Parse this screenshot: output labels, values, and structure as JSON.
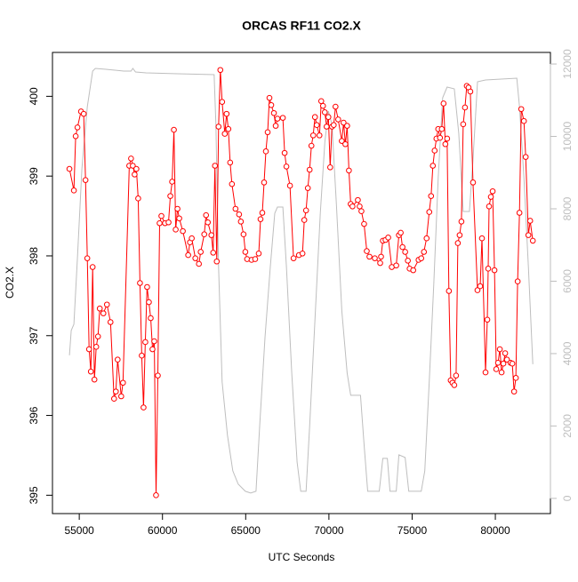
{
  "chart_data": {
    "type": "line",
    "title": "ORCAS RF11 CO2.X",
    "x_label": "UTC Seconds",
    "y_label": "CO2.X",
    "xlim": [
      53390,
      83310
    ],
    "xticks": [
      55000,
      60000,
      65000,
      70000,
      75000,
      80000
    ],
    "ylim": [
      394.77,
      400.55
    ],
    "yticks": [
      395,
      396,
      397,
      398,
      399,
      400
    ],
    "y2lim": [
      -420,
      12320
    ],
    "y2ticks": [
      0,
      2000,
      4000,
      6000,
      8000,
      10000,
      12000
    ],
    "series": [
      {
        "color": "#bebebe",
        "axis": "y2",
        "markers": false,
        "x": [
          54409,
          54517,
          54678,
          54892,
          55161,
          55482,
          55804,
          55965,
          56609,
          57682,
          58111,
          58218,
          58379,
          59023,
          60901,
          63101,
          63208,
          63369,
          63584,
          63905,
          64227,
          64549,
          64978,
          65300,
          65622,
          65837,
          66159,
          66481,
          66749,
          66910,
          67232,
          67446,
          67768,
          68090,
          68305,
          68627,
          68842,
          69163,
          69485,
          69754,
          69968,
          70183,
          70451,
          70773,
          71095,
          71309,
          71899,
          72114,
          72329,
          73026,
          73241,
          73509,
          73670,
          74046,
          74207,
          74582,
          74797,
          75548,
          75763,
          76030,
          76299,
          76567,
          76835,
          77104,
          77533,
          77801,
          78069,
          78445,
          78659,
          78927,
          79410,
          81288,
          81449,
          81717,
          81985,
          82253
        ],
        "values": [
          3951,
          4638,
          4810,
          6650,
          9104,
          10822,
          11804,
          11877,
          11853,
          11804,
          11804,
          11877,
          11779,
          11755,
          11730,
          11706,
          10331,
          6405,
          3215,
          1742,
          761,
          393,
          196,
          147,
          196,
          1988,
          4442,
          6405,
          7877,
          8049,
          8049,
          6405,
          3460,
          1006,
          196,
          196,
          1988,
          4933,
          7877,
          9841,
          10699,
          10331,
          8123,
          5178,
          3460,
          2847,
          2847,
          1497,
          196,
          196,
          1104,
          1104,
          196,
          196,
          1202,
          1129,
          196,
          196,
          761,
          3215,
          5914,
          8859,
          11068,
          11362,
          11313,
          10086,
          7927,
          7927,
          9350,
          11509,
          11558,
          11607,
          10822,
          8859,
          6405,
          3706
        ]
      },
      {
        "color": "#ff0000",
        "markers": true,
        "x": [
          54409,
          54678,
          54785,
          54892,
          55107,
          55268,
          55375,
          55482,
          55590,
          55697,
          55804,
          55911,
          56019,
          56126,
          56233,
          56448,
          56663,
          56877,
          57092,
          57199,
          57306,
          57521,
          57628,
          58004,
          58111,
          58218,
          58326,
          58433,
          58540,
          58648,
          58755,
          58862,
          58970,
          59077,
          59184,
          59292,
          59399,
          59506,
          59613,
          59721,
          59828,
          59935,
          60150,
          60364,
          60472,
          60579,
          60686,
          60794,
          60901,
          61008,
          61223,
          61545,
          61652,
          61759,
          61974,
          62189,
          62296,
          62511,
          62618,
          62725,
          62940,
          63047,
          63154,
          63262,
          63369,
          63476,
          63584,
          63744,
          63852,
          63959,
          64066,
          64174,
          64388,
          64603,
          64710,
          64871,
          64978,
          65086,
          65354,
          65569,
          65783,
          65891,
          65998,
          66105,
          66213,
          66320,
          66427,
          66534,
          66695,
          66803,
          66910,
          67232,
          67339,
          67446,
          67661,
          67876,
          68198,
          68412,
          68520,
          68627,
          68734,
          68842,
          68949,
          69056,
          69163,
          69271,
          69432,
          69539,
          69646,
          69754,
          69861,
          69968,
          70076,
          70183,
          70290,
          70397,
          70558,
          70773,
          70880,
          70988,
          71095,
          71202,
          71309,
          71417,
          71739,
          71846,
          71953,
          72114,
          72275,
          72436,
          72758,
          73080,
          73133,
          73241,
          73402,
          73563,
          73777,
          74046,
          74207,
          74314,
          74421,
          74582,
          74743,
          74850,
          75065,
          75387,
          75548,
          75709,
          75870,
          76030,
          76138,
          76245,
          76352,
          76460,
          76567,
          76674,
          76782,
          76889,
          76996,
          77104,
          77211,
          77318,
          77425,
          77533,
          77640,
          77747,
          77855,
          77962,
          78069,
          78176,
          78284,
          78391,
          78498,
          78659,
          78927,
          79088,
          79196,
          79410,
          79518,
          79571,
          79625,
          79732,
          79839,
          79947,
          80054,
          80161,
          80269,
          80376,
          80483,
          80590,
          80698,
          80912,
          81020,
          81127,
          81234,
          81341,
          81449,
          81556,
          81717,
          81824,
          81985,
          82092,
          82253
        ],
        "values": [
          399.09,
          398.82,
          399.5,
          399.61,
          399.81,
          399.78,
          398.95,
          397.97,
          396.83,
          396.55,
          397.86,
          396.45,
          396.86,
          396.99,
          397.34,
          397.28,
          397.39,
          397.17,
          396.21,
          396.3,
          396.7,
          396.24,
          396.41,
          399.13,
          399.22,
          399.13,
          399.02,
          399.09,
          398.72,
          397.66,
          396.75,
          396.1,
          396.92,
          397.61,
          397.42,
          397.22,
          396.83,
          396.93,
          395.0,
          396.5,
          398.41,
          398.5,
          398.41,
          398.42,
          398.75,
          398.93,
          399.58,
          398.33,
          398.59,
          398.47,
          398.31,
          398.01,
          398.17,
          398.22,
          397.97,
          397.9,
          398.05,
          398.27,
          398.51,
          398.42,
          398.26,
          398.04,
          399.13,
          397.93,
          399.62,
          400.33,
          399.93,
          399.53,
          399.78,
          399.59,
          399.17,
          398.9,
          398.59,
          398.52,
          398.43,
          398.27,
          398.05,
          397.96,
          397.95,
          397.96,
          398.03,
          398.46,
          398.54,
          398.92,
          399.31,
          399.55,
          399.98,
          399.89,
          399.79,
          399.63,
          399.72,
          399.73,
          399.29,
          399.12,
          398.88,
          397.97,
          398.01,
          398.03,
          398.45,
          398.57,
          398.85,
          399.08,
          399.38,
          399.51,
          399.74,
          399.64,
          399.51,
          399.94,
          399.88,
          399.8,
          399.62,
          399.74,
          399.11,
          399.62,
          399.64,
          399.87,
          399.71,
          399.44,
          399.67,
          399.4,
          399.63,
          399.07,
          398.65,
          398.62,
          398.7,
          398.62,
          398.56,
          398.4,
          398.06,
          397.99,
          397.97,
          397.91,
          397.99,
          398.19,
          398.2,
          398.23,
          397.86,
          397.88,
          398.26,
          398.29,
          398.11,
          398.05,
          397.94,
          397.84,
          397.82,
          397.95,
          397.97,
          398.05,
          398.22,
          398.55,
          398.75,
          399.13,
          399.32,
          399.47,
          399.59,
          399.48,
          399.59,
          399.91,
          399.4,
          399.47,
          397.56,
          396.44,
          396.41,
          396.38,
          396.5,
          398.16,
          398.26,
          398.43,
          399.65,
          399.86,
          400.13,
          400.11,
          400.06,
          398.92,
          397.57,
          397.62,
          398.22,
          396.54,
          397.2,
          397.84,
          398.62,
          398.74,
          398.81,
          397.82,
          396.58,
          396.66,
          396.83,
          396.54,
          396.65,
          396.78,
          396.7,
          396.66,
          396.65,
          396.3,
          396.47,
          397.68,
          398.54,
          399.84,
          399.69,
          399.24,
          398.26,
          398.44,
          398.19
        ]
      }
    ]
  }
}
